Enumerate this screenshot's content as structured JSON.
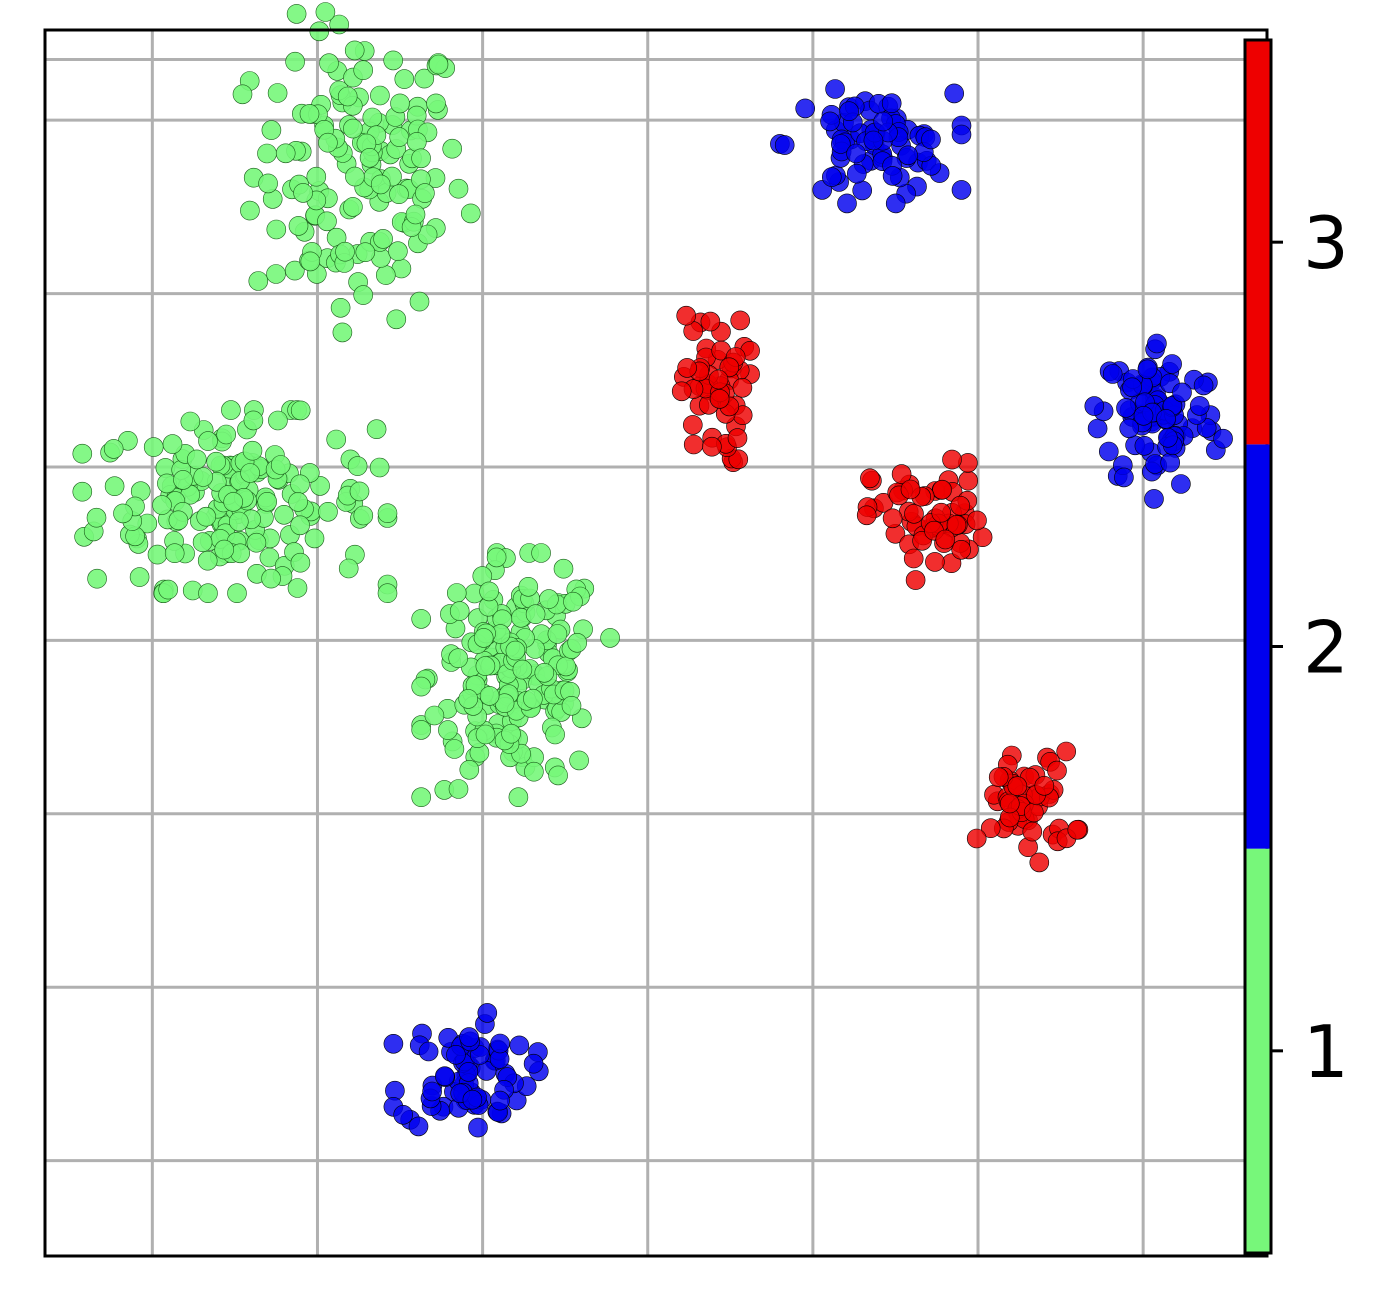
{
  "chart_data": {
    "type": "scatter",
    "title": "",
    "xlabel": "",
    "ylabel": "",
    "xlim": [
      -3.25,
      4.15
    ],
    "ylim": [
      -4.55,
      2.52
    ],
    "grid": true,
    "x_gridlines": [
      -2.6,
      -1.6,
      -0.6,
      0.4,
      1.4,
      2.4,
      3.4
    ],
    "y_gridlines": [
      -4.0,
      -3.0,
      -2.0,
      -1.0,
      0.0,
      1.0,
      2.0,
      2.35
    ],
    "colorbar": {
      "ticks": [
        "1",
        "2",
        "3"
      ],
      "colors": {
        "1": "#77f77a",
        "2": "#0000ee",
        "3": "#ee0000"
      }
    },
    "clusters": [
      {
        "label": 1,
        "center": [
          -1.35,
          1.7
        ],
        "spread": [
          0.32,
          0.42
        ],
        "n": 150
      },
      {
        "label": 1,
        "center": [
          -2.1,
          -0.2
        ],
        "spread": [
          0.42,
          0.24
        ],
        "n": 180
      },
      {
        "label": 1,
        "center": [
          -0.4,
          -1.2
        ],
        "spread": [
          0.26,
          0.32
        ],
        "n": 190
      },
      {
        "label": 2,
        "center": [
          1.75,
          1.85
        ],
        "spread": [
          0.25,
          0.15
        ],
        "n": 75
      },
      {
        "label": 2,
        "center": [
          3.5,
          0.3
        ],
        "spread": [
          0.18,
          0.22
        ],
        "n": 90
      },
      {
        "label": 2,
        "center": [
          -0.7,
          -3.5
        ],
        "spread": [
          0.2,
          0.16
        ],
        "n": 75
      },
      {
        "label": 3,
        "center": [
          0.8,
          0.45
        ],
        "spread": [
          0.1,
          0.22
        ],
        "n": 55
      },
      {
        "label": 3,
        "center": [
          2.1,
          -0.3
        ],
        "spread": [
          0.17,
          0.16
        ],
        "n": 60
      },
      {
        "label": 3,
        "center": [
          2.7,
          -1.95
        ],
        "spread": [
          0.14,
          0.15
        ],
        "n": 55
      }
    ]
  }
}
